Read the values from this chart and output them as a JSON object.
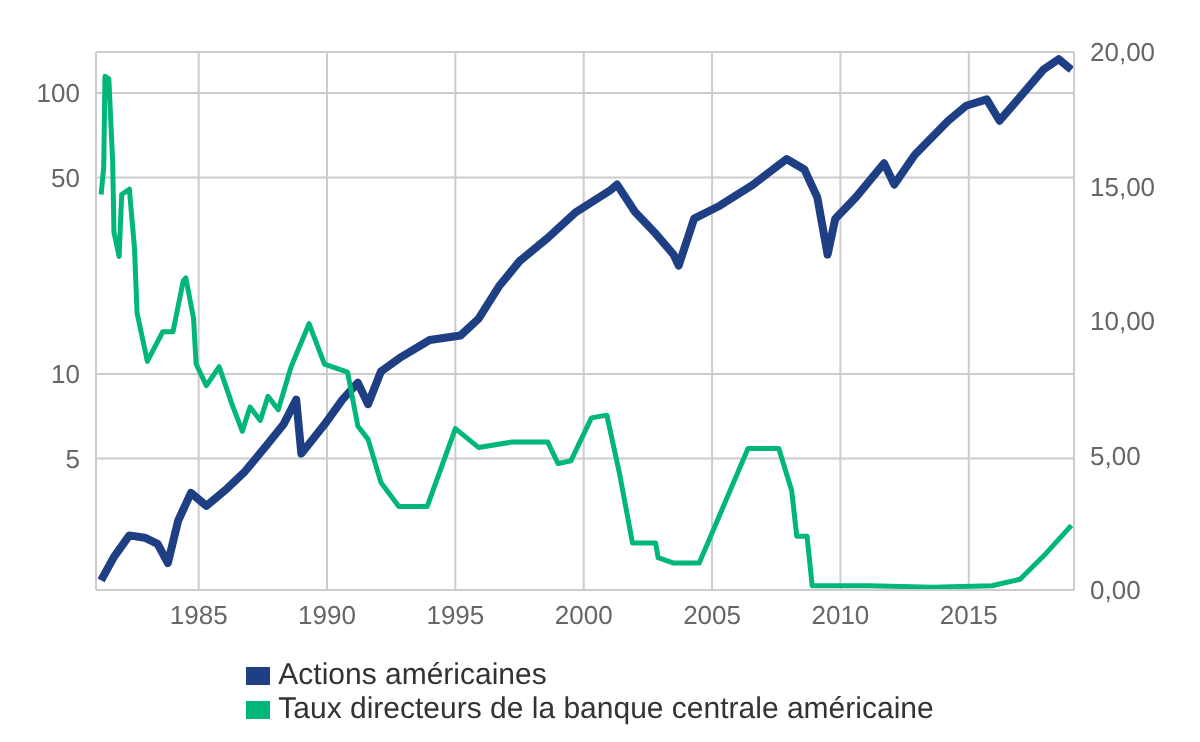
{
  "chart_data": {
    "type": "line",
    "xlim": [
      1981,
      2019.1
    ],
    "xticks": [
      1985,
      1990,
      1995,
      2000,
      2005,
      2010,
      2015
    ],
    "ylim": [
      1.7,
      140
    ],
    "yticks": [
      5,
      10,
      50,
      100
    ],
    "log": "y",
    "y2lim": [
      0,
      20
    ],
    "y2ticks": [
      {
        "value": 0,
        "label": "0,00"
      },
      {
        "value": 5,
        "label": "5,00"
      },
      {
        "value": 10,
        "label": "10,00"
      },
      {
        "value": 15,
        "label": "15,00"
      },
      {
        "value": 20,
        "label": "20,00"
      }
    ],
    "grid": true,
    "legend": "bottom",
    "series": [
      {
        "name": "Actions américaines",
        "color": "#1f3f85",
        "x": [
          1981.2,
          1981.7,
          1982.3,
          1982.9,
          1983.4,
          1983.8,
          1984.2,
          1984.7,
          1985.3,
          1986.1,
          1986.8,
          1987.6,
          1988.3,
          1988.8,
          1989.0,
          1989.9,
          1990.6,
          1991.2,
          1991.6,
          1992.1,
          1992.9,
          1994.0,
          1995.2,
          1995.9,
          1996.7,
          1997.5,
          1998.6,
          1999.7,
          2001.0,
          2001.3,
          2002.0,
          2002.8,
          2003.5,
          2003.7,
          2004.3,
          2005.3,
          2006.6,
          2007.9,
          2008.6,
          2009.1,
          2009.5,
          2009.8,
          2010.6,
          2011.7,
          2012.1,
          2012.9,
          2014.2,
          2014.9,
          2015.7,
          2016.2,
          2017.2,
          2017.9,
          2018.5,
          2019.0
        ],
        "values": [
          1.84,
          2.23,
          2.66,
          2.61,
          2.48,
          2.12,
          3.0,
          3.77,
          3.39,
          3.9,
          4.49,
          5.5,
          6.6,
          8.1,
          5.2,
          6.6,
          8.1,
          9.3,
          7.8,
          10.2,
          11.5,
          13.2,
          13.7,
          15.7,
          20.5,
          25.2,
          30.5,
          37.7,
          44.8,
          47.2,
          37.7,
          31.6,
          26.6,
          24.3,
          35.7,
          39.7,
          47.2,
          58.2,
          53.4,
          42.5,
          26.6,
          35.7,
          42.5,
          56.2,
          47.2,
          60.3,
          79.7,
          90.1,
          94.9,
          79.7,
          101.8,
          121,
          132,
          121
        ]
      },
      {
        "name": "Taux directeurs de la banque centrale américaine",
        "color": "#00b67a",
        "axis": "y2",
        "x": [
          1981.2,
          1981.3,
          1981.35,
          1981.5,
          1981.65,
          1981.7,
          1981.9,
          1982.0,
          1982.3,
          1982.5,
          1982.6,
          1983.0,
          1983.6,
          1984.0,
          1984.4,
          1984.5,
          1984.8,
          1984.9,
          1985.3,
          1985.8,
          1986.3,
          1986.7,
          1987.0,
          1987.4,
          1987.7,
          1988.1,
          1988.6,
          1989.3,
          1989.9,
          1990.8,
          1991.2,
          1991.6,
          1992.1,
          1992.8,
          1993.9,
          1995.0,
          1995.9,
          1997.2,
          1998.6,
          1999.0,
          1999.5,
          2000.3,
          2000.9,
          2001.4,
          2001.9,
          2002.8,
          2002.9,
          2003.5,
          2004.5,
          2006.4,
          2007.6,
          2008.1,
          2008.3,
          2008.7,
          2008.9,
          2011.1,
          2013.6,
          2015.9,
          2017.0,
          2018.0,
          2019.0
        ],
        "values": [
          14.7,
          15.7,
          19.1,
          19.0,
          15.9,
          13.3,
          12.4,
          14.7,
          14.9,
          12.7,
          10.3,
          8.5,
          9.6,
          9.6,
          11.5,
          11.6,
          10.1,
          8.4,
          7.6,
          8.3,
          6.9,
          5.9,
          6.8,
          6.3,
          7.2,
          6.7,
          8.3,
          9.9,
          8.4,
          8.1,
          6.1,
          5.6,
          4.0,
          3.1,
          3.1,
          6.0,
          5.3,
          5.5,
          5.5,
          4.7,
          4.8,
          6.4,
          6.5,
          4.3,
          1.75,
          1.75,
          1.2,
          1.0,
          1.0,
          5.26,
          5.26,
          3.7,
          2.0,
          2.0,
          0.16,
          0.16,
          0.1,
          0.16,
          0.4,
          1.35,
          2.4
        ]
      }
    ]
  }
}
